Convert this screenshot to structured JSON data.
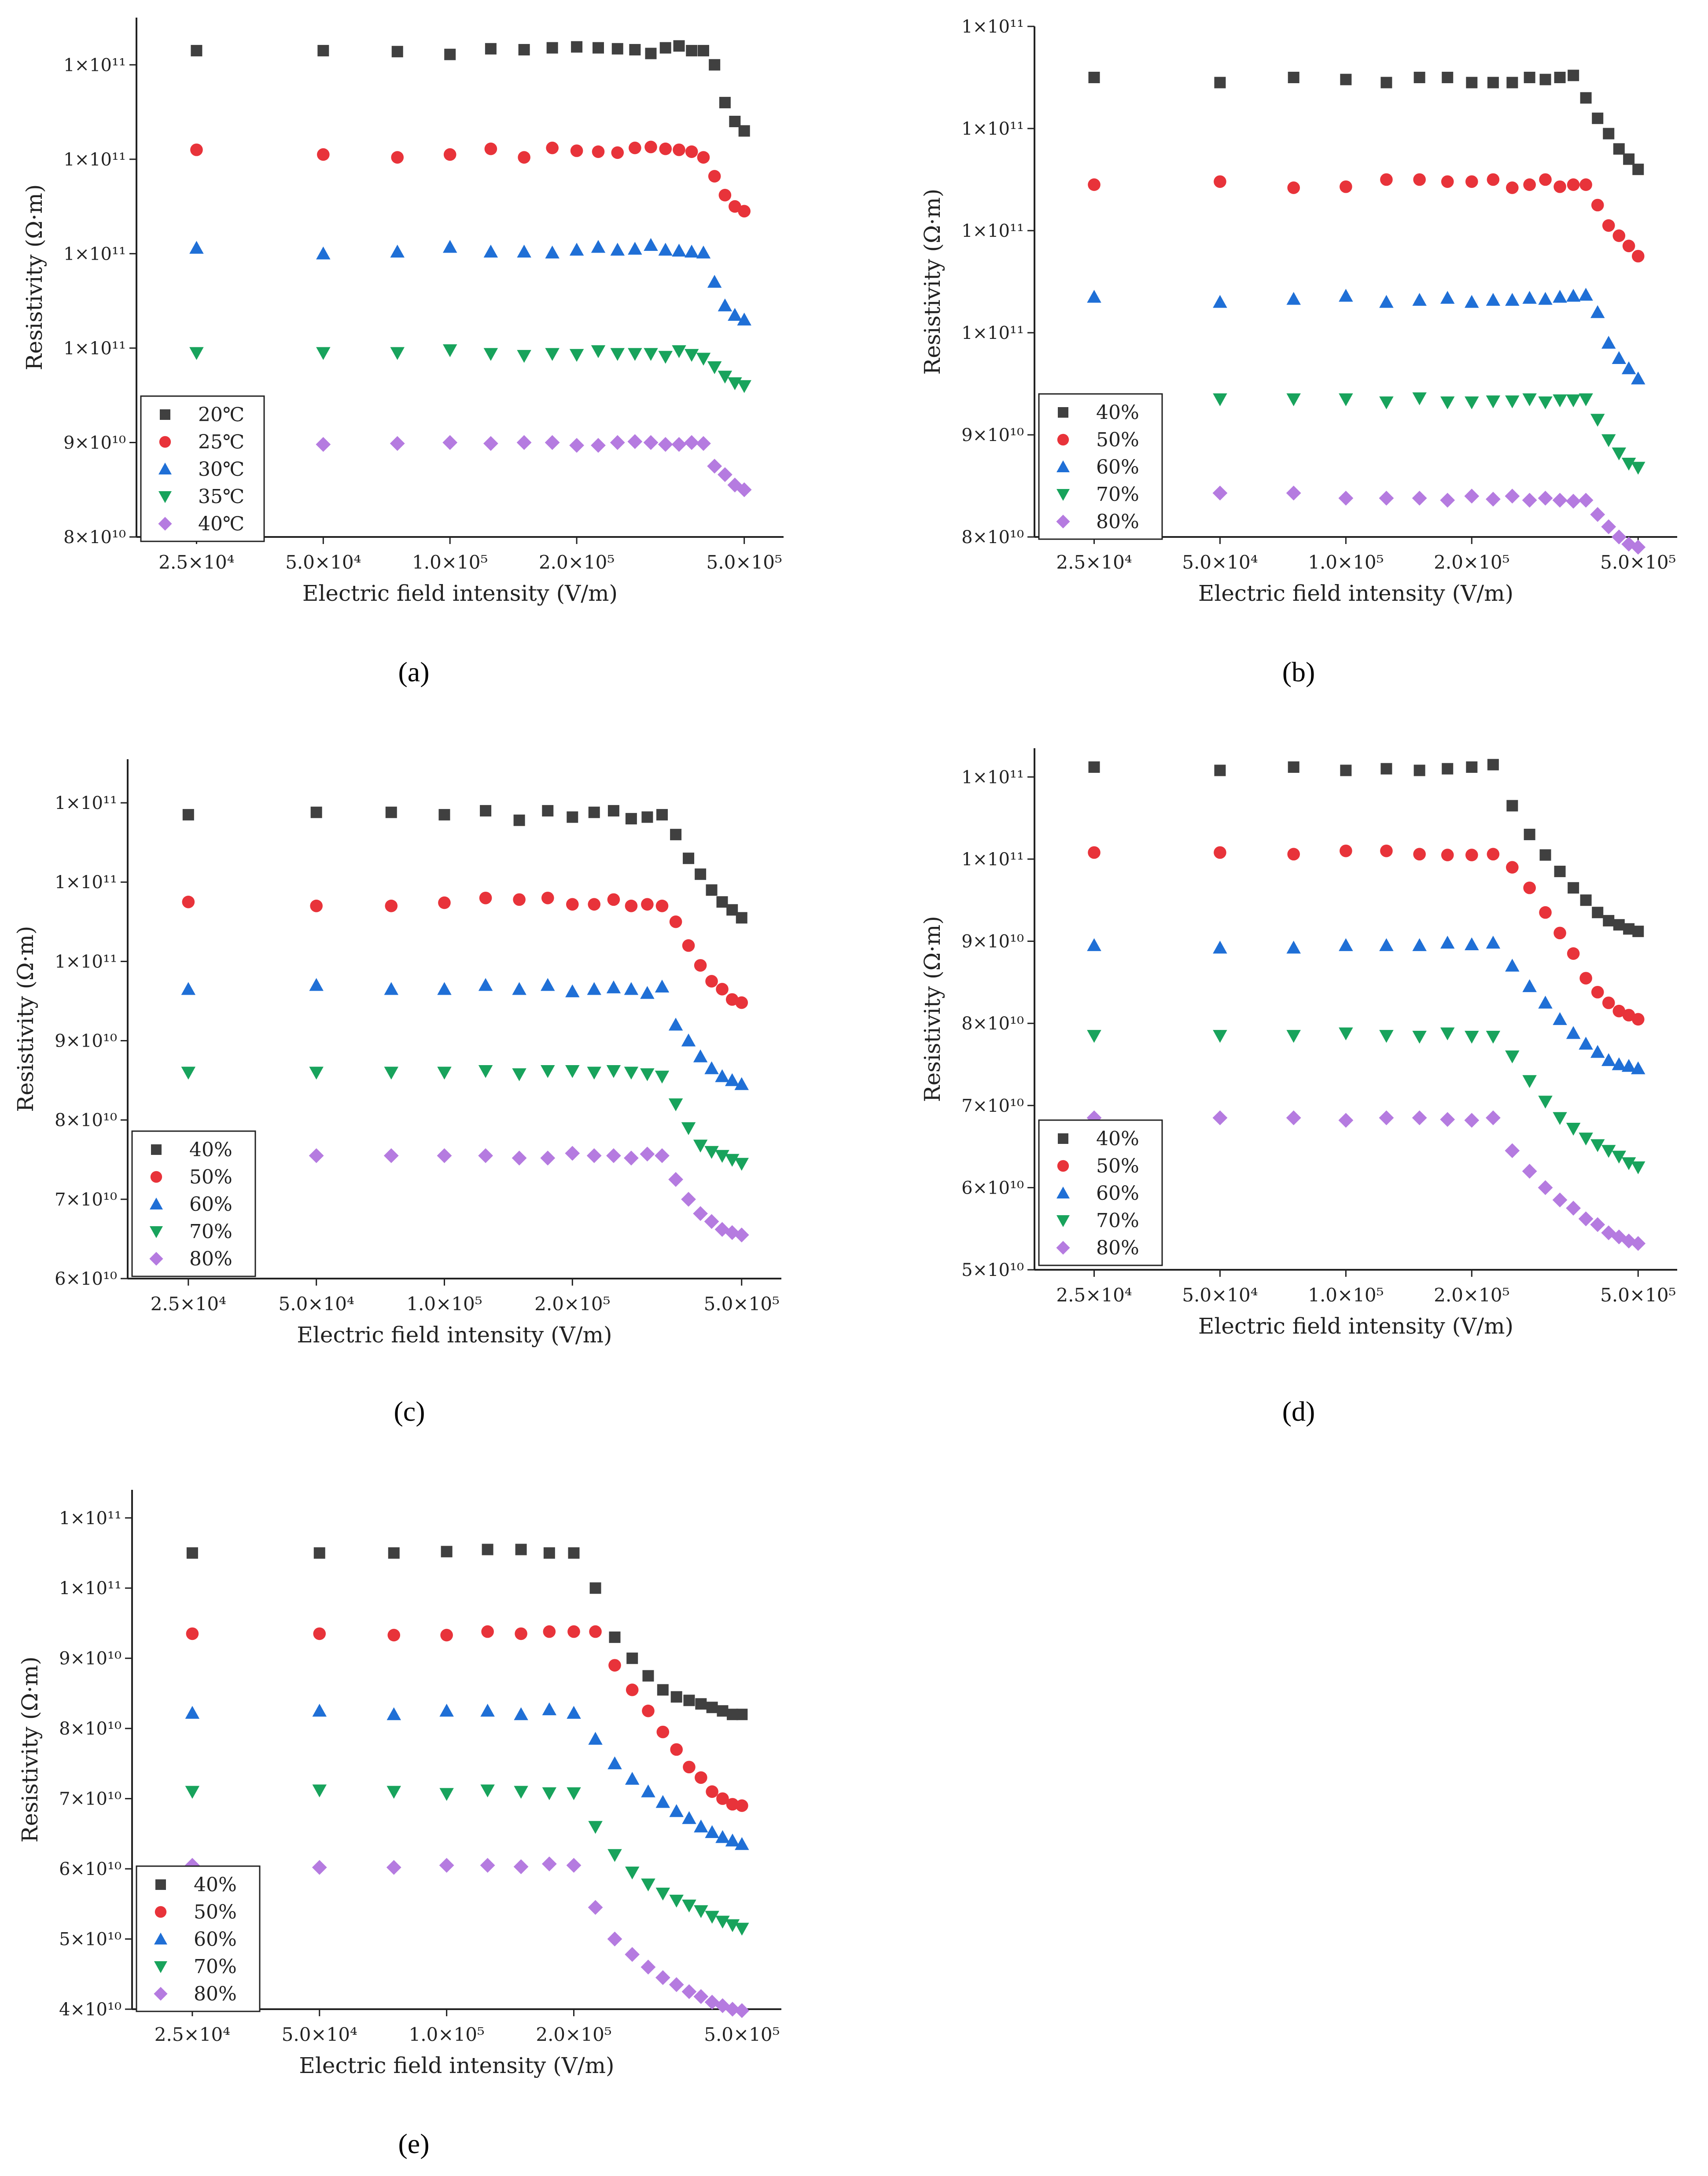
{
  "colors": {
    "series": [
      "#404040",
      "#e8333a",
      "#1f6fd6",
      "#18a35c",
      "#b57be0"
    ],
    "axis": "#222222"
  },
  "common": {
    "xlabel": "Electric field intensity (V/m)",
    "ylabel": "Resistivity (Ω·m)",
    "x_tick_values": [
      25000,
      50000,
      100000,
      200000,
      500000
    ],
    "x_tick_labels": [
      "2.5×10⁴",
      "5.0×10⁴",
      "1.0×10⁵",
      "2.0×10⁵",
      "5.0×10⁵"
    ],
    "x_positions": [
      25000,
      50000,
      75000,
      100000,
      125000,
      150000,
      175000,
      200000,
      225000,
      250000,
      275000,
      300000,
      325000,
      350000,
      375000,
      400000,
      425000,
      450000,
      475000,
      500000
    ]
  },
  "chart_data": [
    {
      "id": "a",
      "caption": "(a)",
      "type": "scatter",
      "xscale": "log",
      "xlabel": "Electric field intensity (V/m)",
      "ylabel": "Resistivity (Ω·m)",
      "y_tick_labels": [
        "8×10¹⁰",
        "9×10¹⁰",
        "1×10¹¹",
        "1×10¹¹",
        "1×10¹¹",
        "1×10¹¹"
      ],
      "ylim": [
        0,
        5.5
      ],
      "legend_position": "bottom-left",
      "series": [
        {
          "name": "20℃",
          "marker": "square",
          "values": [
            5.15,
            5.15,
            5.14,
            5.11,
            5.17,
            5.16,
            5.18,
            5.19,
            5.18,
            5.17,
            5.16,
            5.12,
            5.18,
            5.2,
            5.15,
            5.15,
            5.0,
            4.6,
            4.4,
            4.3
          ]
        },
        {
          "name": "25℃",
          "marker": "circle",
          "values": [
            4.1,
            4.05,
            4.02,
            4.05,
            4.11,
            4.02,
            4.12,
            4.09,
            4.08,
            4.07,
            4.12,
            4.13,
            4.11,
            4.1,
            4.08,
            4.02,
            3.82,
            3.62,
            3.5,
            3.45
          ]
        },
        {
          "name": "30℃",
          "marker": "triangle-up",
          "values": [
            3.06,
            3.0,
            3.02,
            3.07,
            3.02,
            3.02,
            3.01,
            3.04,
            3.07,
            3.04,
            3.05,
            3.09,
            3.04,
            3.03,
            3.02,
            3.01,
            2.7,
            2.45,
            2.35,
            2.3
          ]
        },
        {
          "name": "35℃",
          "marker": "triangle-down",
          "values": [
            1.95,
            1.95,
            1.95,
            1.98,
            1.94,
            1.92,
            1.94,
            1.93,
            1.97,
            1.94,
            1.94,
            1.94,
            1.91,
            1.97,
            1.93,
            1.89,
            1.8,
            1.7,
            1.63,
            1.6
          ]
        },
        {
          "name": "40℃",
          "marker": "diamond",
          "values": [
            0.95,
            0.98,
            0.99,
            1.0,
            0.99,
            1.0,
            1.0,
            0.97,
            0.97,
            1.0,
            1.01,
            1.0,
            0.98,
            0.98,
            1.0,
            0.99,
            0.75,
            0.66,
            0.55,
            0.5
          ]
        }
      ]
    },
    {
      "id": "b",
      "caption": "(b)",
      "type": "scatter",
      "xscale": "log",
      "xlabel": "Electric field intensity (V/m)",
      "ylabel": "Resistivity (Ω·m)",
      "y_tick_labels": [
        "8×10¹⁰",
        "9×10¹⁰",
        "1×10¹¹",
        "1×10¹¹",
        "1×10¹¹",
        "1×10¹¹"
      ],
      "ylim": [
        0,
        5.0
      ],
      "legend_position": "bottom-left",
      "series": [
        {
          "name": "40%",
          "marker": "square",
          "values": [
            4.5,
            4.45,
            4.5,
            4.48,
            4.45,
            4.5,
            4.5,
            4.45,
            4.45,
            4.45,
            4.5,
            4.48,
            4.5,
            4.52,
            4.3,
            4.1,
            3.95,
            3.8,
            3.7,
            3.6
          ]
        },
        {
          "name": "50%",
          "marker": "circle",
          "values": [
            3.45,
            3.48,
            3.42,
            3.43,
            3.5,
            3.5,
            3.48,
            3.48,
            3.5,
            3.42,
            3.45,
            3.5,
            3.43,
            3.45,
            3.45,
            3.25,
            3.05,
            2.95,
            2.85,
            2.75
          ]
        },
        {
          "name": "60%",
          "marker": "triangle-up",
          "values": [
            2.35,
            2.3,
            2.33,
            2.36,
            2.3,
            2.32,
            2.34,
            2.3,
            2.32,
            2.32,
            2.34,
            2.33,
            2.35,
            2.36,
            2.37,
            2.2,
            1.9,
            1.75,
            1.65,
            1.55
          ]
        },
        {
          "name": "70%",
          "marker": "triangle-down",
          "values": [
            1.35,
            1.35,
            1.35,
            1.35,
            1.32,
            1.36,
            1.32,
            1.32,
            1.33,
            1.33,
            1.35,
            1.32,
            1.34,
            1.34,
            1.35,
            1.15,
            0.95,
            0.82,
            0.72,
            0.68
          ]
        },
        {
          "name": "80%",
          "marker": "diamond",
          "values": [
            0.4,
            0.43,
            0.43,
            0.38,
            0.38,
            0.38,
            0.36,
            0.4,
            0.37,
            0.4,
            0.36,
            0.38,
            0.36,
            0.35,
            0.36,
            0.22,
            0.1,
            0.0,
            -0.07,
            -0.1
          ]
        }
      ]
    },
    {
      "id": "c",
      "caption": "(c)",
      "type": "scatter",
      "xscale": "log",
      "xlabel": "Electric field intensity (V/m)",
      "ylabel": "Resistivity (Ω·m)",
      "y_tick_labels": [
        "6×10¹⁰",
        "7×10¹⁰",
        "8×10¹⁰",
        "9×10¹⁰",
        "1×10¹¹",
        "1×10¹¹",
        "1×10¹¹"
      ],
      "ylim": [
        0,
        6.55
      ],
      "legend_position": "bottom-left",
      "series": [
        {
          "name": "40%",
          "marker": "square",
          "values": [
            5.85,
            5.88,
            5.88,
            5.85,
            5.9,
            5.78,
            5.9,
            5.82,
            5.88,
            5.9,
            5.8,
            5.82,
            5.85,
            5.6,
            5.3,
            5.1,
            4.9,
            4.75,
            4.65,
            4.55
          ]
        },
        {
          "name": "50%",
          "marker": "circle",
          "values": [
            4.75,
            4.7,
            4.7,
            4.74,
            4.8,
            4.78,
            4.8,
            4.72,
            4.72,
            4.78,
            4.7,
            4.72,
            4.7,
            4.5,
            4.2,
            3.95,
            3.75,
            3.65,
            3.52,
            3.48
          ]
        },
        {
          "name": "60%",
          "marker": "triangle-up",
          "values": [
            3.65,
            3.7,
            3.65,
            3.65,
            3.7,
            3.65,
            3.7,
            3.62,
            3.65,
            3.67,
            3.65,
            3.6,
            3.68,
            3.2,
            3.0,
            2.8,
            2.65,
            2.55,
            2.5,
            2.45
          ]
        },
        {
          "name": "70%",
          "marker": "triangle-down",
          "values": [
            2.6,
            2.6,
            2.6,
            2.6,
            2.62,
            2.58,
            2.62,
            2.62,
            2.6,
            2.62,
            2.6,
            2.58,
            2.55,
            2.2,
            1.9,
            1.68,
            1.6,
            1.55,
            1.5,
            1.45
          ]
        },
        {
          "name": "80%",
          "marker": "diamond",
          "values": [
            1.55,
            1.55,
            1.55,
            1.55,
            1.55,
            1.52,
            1.52,
            1.58,
            1.55,
            1.55,
            1.52,
            1.57,
            1.55,
            1.25,
            1.0,
            0.82,
            0.72,
            0.62,
            0.58,
            0.55
          ]
        }
      ]
    },
    {
      "id": "d",
      "caption": "(d)",
      "type": "scatter",
      "xscale": "log",
      "xlabel": "Electric field intensity (V/m)",
      "ylabel": "Resistivity (Ω·m)",
      "y_tick_labels": [
        "5×10¹⁰",
        "6×10¹⁰",
        "7×10¹⁰",
        "8×10¹⁰",
        "9×10¹⁰",
        "1×10¹¹",
        "1×10¹¹"
      ],
      "ylim": [
        0,
        6.35
      ],
      "legend_position": "bottom-left",
      "series": [
        {
          "name": "40%",
          "marker": "square",
          "values": [
            6.12,
            6.08,
            6.12,
            6.08,
            6.1,
            6.08,
            6.1,
            6.12,
            6.15,
            5.65,
            5.3,
            5.05,
            4.85,
            4.65,
            4.5,
            4.35,
            4.25,
            4.2,
            4.15,
            4.12
          ]
        },
        {
          "name": "50%",
          "marker": "circle",
          "values": [
            5.08,
            5.08,
            5.06,
            5.1,
            5.1,
            5.06,
            5.05,
            5.05,
            5.06,
            4.9,
            4.65,
            4.35,
            4.1,
            3.85,
            3.55,
            3.38,
            3.25,
            3.15,
            3.1,
            3.05
          ]
        },
        {
          "name": "60%",
          "marker": "triangle-up",
          "values": [
            3.95,
            3.92,
            3.92,
            3.95,
            3.95,
            3.95,
            3.98,
            3.96,
            3.98,
            3.7,
            3.45,
            3.25,
            3.05,
            2.88,
            2.75,
            2.65,
            2.55,
            2.5,
            2.48,
            2.45
          ]
        },
        {
          "name": "70%",
          "marker": "triangle-down",
          "values": [
            2.85,
            2.85,
            2.85,
            2.88,
            2.85,
            2.84,
            2.88,
            2.84,
            2.84,
            2.6,
            2.3,
            2.05,
            1.85,
            1.72,
            1.6,
            1.52,
            1.45,
            1.38,
            1.3,
            1.25
          ]
        },
        {
          "name": "80%",
          "marker": "diamond",
          "values": [
            1.85,
            1.85,
            1.85,
            1.82,
            1.85,
            1.85,
            1.83,
            1.82,
            1.85,
            1.45,
            1.2,
            1.0,
            0.85,
            0.75,
            0.62,
            0.55,
            0.45,
            0.4,
            0.35,
            0.32
          ]
        }
      ]
    },
    {
      "id": "e",
      "caption": "(e)",
      "type": "scatter",
      "xscale": "log",
      "xlabel": "Electric field intensity (V/m)",
      "ylabel": "Resistivity (Ω·m)",
      "y_tick_labels": [
        "4×10¹⁰",
        "5×10¹⁰",
        "6×10¹⁰",
        "7×10¹⁰",
        "8×10¹⁰",
        "9×10¹⁰",
        "1×10¹¹",
        "1×10¹¹"
      ],
      "ylim": [
        0,
        7.4
      ],
      "legend_position": "bottom-left",
      "series": [
        {
          "name": "40%",
          "marker": "square",
          "values": [
            6.5,
            6.5,
            6.5,
            6.52,
            6.55,
            6.55,
            6.5,
            6.5,
            6.0,
            5.3,
            5.0,
            4.75,
            4.55,
            4.45,
            4.4,
            4.35,
            4.3,
            4.25,
            4.2,
            4.2
          ]
        },
        {
          "name": "50%",
          "marker": "circle",
          "values": [
            5.35,
            5.35,
            5.33,
            5.33,
            5.38,
            5.35,
            5.38,
            5.38,
            5.38,
            4.9,
            4.55,
            4.25,
            3.95,
            3.7,
            3.45,
            3.3,
            3.1,
            3.0,
            2.92,
            2.9
          ]
        },
        {
          "name": "60%",
          "marker": "triangle-up",
          "values": [
            4.22,
            4.25,
            4.2,
            4.25,
            4.25,
            4.2,
            4.27,
            4.22,
            3.85,
            3.5,
            3.28,
            3.1,
            2.95,
            2.82,
            2.72,
            2.6,
            2.52,
            2.45,
            2.4,
            2.35
          ]
        },
        {
          "name": "70%",
          "marker": "triangle-down",
          "values": [
            3.1,
            3.12,
            3.1,
            3.07,
            3.12,
            3.1,
            3.08,
            3.08,
            2.6,
            2.2,
            1.95,
            1.78,
            1.65,
            1.55,
            1.48,
            1.4,
            1.32,
            1.25,
            1.2,
            1.15
          ]
        },
        {
          "name": "80%",
          "marker": "diamond",
          "values": [
            2.05,
            2.02,
            2.02,
            2.05,
            2.05,
            2.03,
            2.07,
            2.05,
            1.45,
            1.0,
            0.78,
            0.6,
            0.45,
            0.35,
            0.25,
            0.18,
            0.1,
            0.05,
            0.0,
            -0.02
          ]
        }
      ]
    }
  ]
}
